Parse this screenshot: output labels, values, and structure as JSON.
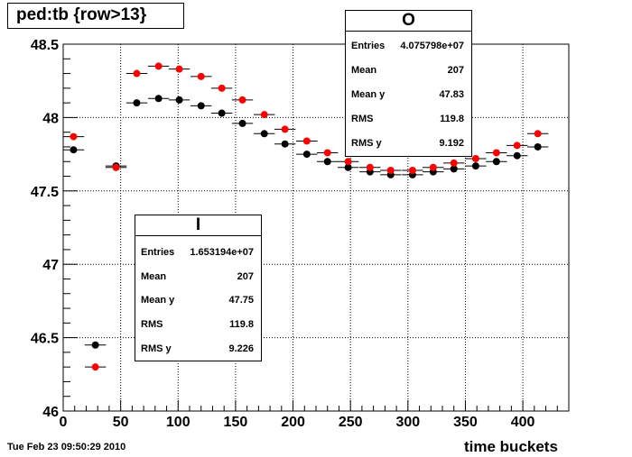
{
  "title": "ped:tb {row>13}",
  "timestamp": "Tue Feb 23 09:50:29 2010",
  "chart_data": {
    "type": "scatter",
    "xlabel": "time buckets",
    "ylabel": "",
    "xlim": [
      0,
      440
    ],
    "ylim": [
      46,
      48.5
    ],
    "x_error_half_width": 9.2,
    "grid": true,
    "x_ticks": [
      "0",
      "50",
      "100",
      "150",
      "200",
      "250",
      "300",
      "350",
      "400"
    ],
    "y_ticks": [
      "46",
      "46.5",
      "47",
      "47.5",
      "48",
      "48.5"
    ],
    "series": [
      {
        "name": "I",
        "color": "#000000",
        "x": [
          9,
          28,
          46,
          64,
          83,
          101,
          120,
          138,
          156,
          175,
          193,
          212,
          230,
          248,
          267,
          285,
          304,
          322,
          340,
          359,
          377,
          395,
          413
        ],
        "y": [
          47.78,
          46.45,
          47.67,
          48.1,
          48.13,
          48.12,
          48.08,
          48.03,
          47.96,
          47.89,
          47.82,
          47.75,
          47.7,
          47.66,
          47.63,
          47.61,
          47.61,
          47.63,
          47.65,
          47.67,
          47.7,
          47.74,
          47.8
        ]
      },
      {
        "name": "O",
        "color": "#ff0000",
        "x": [
          9,
          28,
          46,
          64,
          83,
          101,
          120,
          138,
          156,
          175,
          193,
          212,
          230,
          248,
          267,
          285,
          304,
          322,
          340,
          359,
          377,
          395,
          413
        ],
        "y": [
          47.87,
          46.3,
          47.66,
          48.3,
          48.35,
          48.33,
          48.28,
          48.2,
          48.12,
          48.02,
          47.92,
          47.84,
          47.76,
          47.7,
          47.66,
          47.64,
          47.64,
          47.66,
          47.69,
          47.72,
          47.76,
          47.81,
          47.89
        ]
      }
    ]
  },
  "stats_I": {
    "header": "I",
    "rows": [
      {
        "label": "Entries",
        "value": "1.653194e+07"
      },
      {
        "label": "Mean",
        "value": "207"
      },
      {
        "label": "Mean y",
        "value": "47.75"
      },
      {
        "label": "RMS",
        "value": "119.8"
      },
      {
        "label": "RMS y",
        "value": "9.226"
      }
    ]
  },
  "stats_O": {
    "header": "O",
    "rows": [
      {
        "label": "Entries",
        "value": "4.075798e+07"
      },
      {
        "label": "Mean",
        "value": "207"
      },
      {
        "label": "Mean y",
        "value": "47.83"
      },
      {
        "label": "RMS",
        "value": "119.8"
      },
      {
        "label": "RMS y",
        "value": "9.192"
      }
    ]
  }
}
